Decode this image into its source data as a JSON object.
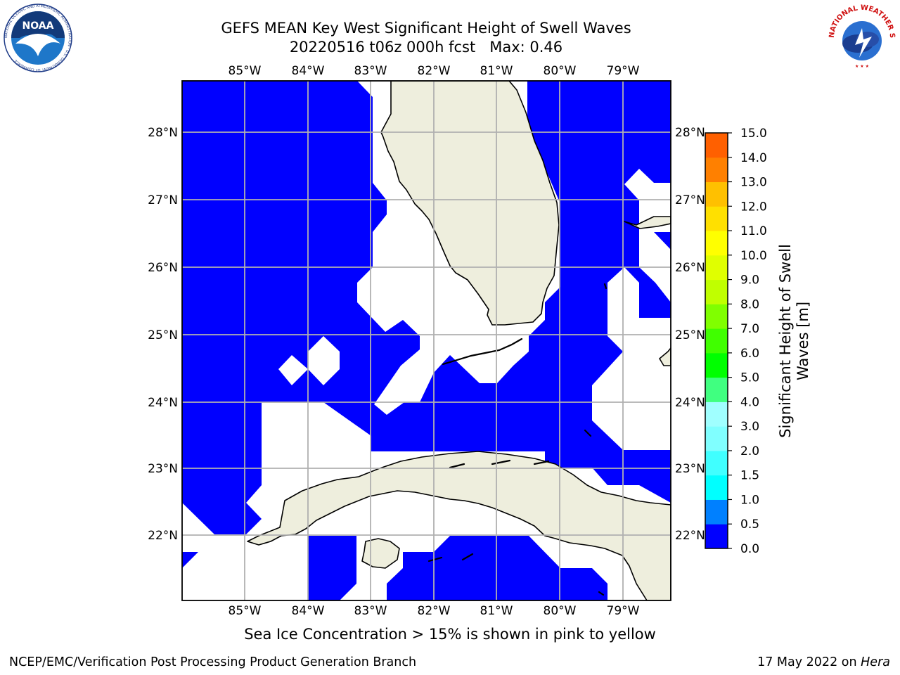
{
  "title_line1": "GEFS MEAN Key West Significant Height of Swell Waves",
  "title_line2": "20220516 t06z 000h fcst   Max: 0.46",
  "lon_ticks": [
    "85°W",
    "84°W",
    "83°W",
    "82°W",
    "81°W",
    "80°W",
    "79°W"
  ],
  "lat_ticks": [
    "28°N",
    "27°N",
    "26°N",
    "25°N",
    "24°N",
    "23°N",
    "22°N"
  ],
  "colorbar": {
    "label": "Significant Height of Swell\nWaves [m]",
    "ticks": [
      "15.0",
      "14.0",
      "13.0",
      "12.0",
      "11.0",
      "10.0",
      "9.0",
      "8.0",
      "7.0",
      "6.0",
      "5.0",
      "4.0",
      "3.0",
      "2.0",
      "1.5",
      "1.0",
      "0.5",
      "0.0"
    ],
    "colors": [
      "#0000ff",
      "#0080ff",
      "#00ffff",
      "#40ffff",
      "#80ffff",
      "#a0ffff",
      "#40ff80",
      "#00ff00",
      "#40ff00",
      "#80ff00",
      "#c0ff00",
      "#e0ff00",
      "#ffff00",
      "#ffe000",
      "#ffc000",
      "#ff8000",
      "#ff6000",
      "#ff3000",
      "#ff0000"
    ]
  },
  "note": "Sea Ice Concentration > 15% is shown in pink to yellow",
  "footer_left": "NCEP/EMC/Verification Post Processing Product Generation Branch",
  "footer_right_date": "17 May 2022 on ",
  "footer_right_host": "Hera",
  "logos": {
    "noaa_text": "NOAA",
    "noaa_ring": "NATIONAL OCEANIC AND ATMOSPHERIC ADMINISTRATION · U.S. DEPARTMENT OF COMMERCE",
    "nws_ring": "NATIONAL WEATHER SERVICE"
  },
  "colors": {
    "wave": "#0000ff",
    "land": "#eeeedd",
    "grid": "#b0b0b0"
  }
}
